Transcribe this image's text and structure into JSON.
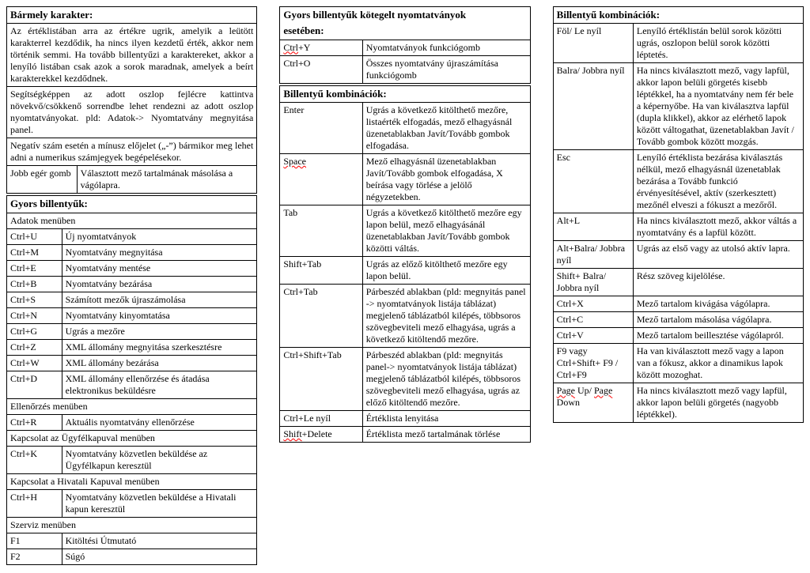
{
  "col1": {
    "h1": "Bármely karakter:",
    "p1": "Az értéklistában arra az értékre ugrik, amelyik a leütött karakterrel kezdődik, ha nincs ilyen kezdetű érték, akkor nem történik semmi. Ha tovább billentyűzi a karaktereket, akkor a lenyíló listában csak azok a sorok maradnak, amelyek a beírt karakterekkel kezdődnek.",
    "p2": "Segítségképpen az adott oszlop fejlécre kattintva növekvő/csökkenő sorrendbe lehet rendezni az adott oszlop nyomtatványokat. pld: Adatok-> Nyomtatvány megnyitása panel.",
    "p3": "Negatív szám esetén a mínusz előjelet („-”) bármikor meg lehet adni a numerikus számjegyek begépelésekor.",
    "r1k": "Jobb egér gomb",
    "r1v": "Választott mező tartalmának másolása a vágólapra.",
    "h2": "Gyors billentyűk:",
    "s1": "Adatok menüben",
    "rows_a": [
      [
        "Ctrl+U",
        "Új nyomtatványok"
      ],
      [
        "Ctrl+M",
        "Nyomtatvány megnyitása"
      ],
      [
        "Ctrl+E",
        "Nyomtatvány mentése"
      ],
      [
        "Ctrl+B",
        "Nyomtatvány bezárása"
      ],
      [
        "Ctrl+S",
        "Számított mezők újraszámolása"
      ],
      [
        "Ctrl+N",
        "Nyomtatvány kinyomtatása"
      ],
      [
        "Ctrl+G",
        "Ugrás a mezőre"
      ],
      [
        "Ctrl+Z",
        "XML állomány megnyitása szerkesztésre"
      ],
      [
        "Ctrl+W",
        "XML állomány bezárása"
      ],
      [
        "Ctrl+D",
        "XML állomány ellenőrzése és átadása elektronikus beküldésre"
      ]
    ],
    "s2": "Ellenőrzés menüben",
    "rows_b": [
      [
        "Ctrl+R",
        "Aktuális nyomtatvány ellenőrzése"
      ]
    ],
    "s3": "Kapcsolat az Ügyfélkapuval menüben",
    "rows_c": [
      [
        "Ctrl+K",
        "Nyomtatvány közvetlen beküldése az Ügyfélkapun keresztül"
      ]
    ],
    "s4": "Kapcsolat a Hivatali Kapuval menüben",
    "rows_d": [
      [
        "Ctrl+H",
        "Nyomtatvány közvetlen beküldése a Hivatali kapun keresztül"
      ]
    ],
    "s5": "Szerviz menüben",
    "rows_e": [
      [
        "F1",
        "Kitöltési Útmutató"
      ],
      [
        "F2",
        "Súgó"
      ]
    ]
  },
  "col2": {
    "h1a": "Gyors billentyűk kötegelt nyomtatványok",
    "h1b": "esetében:",
    "rows_a": [
      [
        "Ctrl+Y",
        "Nyomtatványok funkciógomb",
        true
      ],
      [
        "Ctrl+O",
        "Összes nyomtatvány újraszámítása funkciógomb",
        false
      ]
    ],
    "h2": "Billentyű kombinációk:",
    "rows_b": [
      [
        "Enter",
        "Ugrás a következő kitölthető mezőre, listaérték elfogadás, mező elhagyásnál üzenetablakban Javít/Tovább gombok elfogadása.",
        false
      ],
      [
        "Space",
        "Mező elhagyásnál üzenetablakban Javít/Tovább gombok elfogadása, X beírása vagy törlése a jelölő négyzetekben.",
        true
      ],
      [
        "Tab",
        "Ugrás a következő kitölthető mezőre egy lapon belül, mező elhagyásánál üzenetablakban Javít/Tovább gombok közötti váltás.",
        false
      ],
      [
        "Shift+Tab",
        "Ugrás az előző kitölthető mezőre egy lapon belül.",
        false
      ],
      [
        "Ctrl+Tab",
        "Párbeszéd ablakban (pld: megnyitás panel -> nyomtatványok listája táblázat) megjelenő táblázatból kilépés, többsoros szövegbeviteli mező elhagyása, ugrás a következő kitöltendő mezőre.",
        false
      ],
      [
        "Ctrl+Shift+Tab",
        "Párbeszéd ablakban (pld: megnyitás panel-> nyomtatványok listája táblázat) megjelenő táblázatból kilépés, többsoros szövegbeviteli mező elhagyása, ugrás az előző kitöltendő mezőre.",
        false
      ],
      [
        "Ctrl+Le nyíl",
        "Értéklista lenyitása",
        false
      ],
      [
        "Shift+Delete",
        "Értéklista mező tartalmának törlése",
        true
      ]
    ]
  },
  "col3": {
    "h1": "Billentyű kombinációk:",
    "rows": [
      [
        "Föl/ Le nyíl",
        "Lenyíló értéklistán belül sorok közötti ugrás, oszlopon belül sorok közötti léptetés."
      ],
      [
        "Balra/ Jobbra nyíl",
        "Ha nincs kiválasztott mező, vagy lapfül, akkor lapon belüli görgetés kisebb léptékkel, ha a nyomtatvány nem fér bele a képernyőbe. Ha van kiválasztva lapfül (dupla klikkel), akkor az elérhető lapok között váltogathat, üzenetablakban Javít / Tovább gombok között mozgás."
      ],
      [
        "Esc",
        "Lenyíló értéklista bezárása kiválasztás nélkül, mező elhagyásnál üzenetablak bezárása a Tovább funkció érvényesítésével, aktív (szerkesztett) mezőnél elveszi a fókuszt a mezőről."
      ],
      [
        "Alt+L",
        "Ha nincs kiválasztott mező, akkor váltás a nyomtatvány és a lapfül között."
      ],
      [
        "Alt+Balra/ Jobbra nyíl",
        "Ugrás az első vagy az utolsó aktív lapra."
      ],
      [
        "Shift+ Balra/ Jobbra nyíl",
        "Rész szöveg kijelölése."
      ],
      [
        "Ctrl+X",
        "Mező tartalom kivágása vágólapra."
      ],
      [
        "Ctrl+C",
        "Mező tartalom másolása vágólapra."
      ],
      [
        "Ctrl+V",
        "Mező tartalom beillesztése vágólapról."
      ],
      [
        "F9 vagy Ctrl+Shift+ F9 / Ctrl+F9",
        "Ha van kiválasztott mező vagy a lapon van a fókusz, akkor a dinamikus lapok között mozoghat."
      ],
      [
        "Page Up/ Page Down",
        "Ha nincs kiválasztott mező vagy lapfül, akkor lapon belüli görgetés (nagyobb léptékkel).",
        true
      ]
    ]
  }
}
